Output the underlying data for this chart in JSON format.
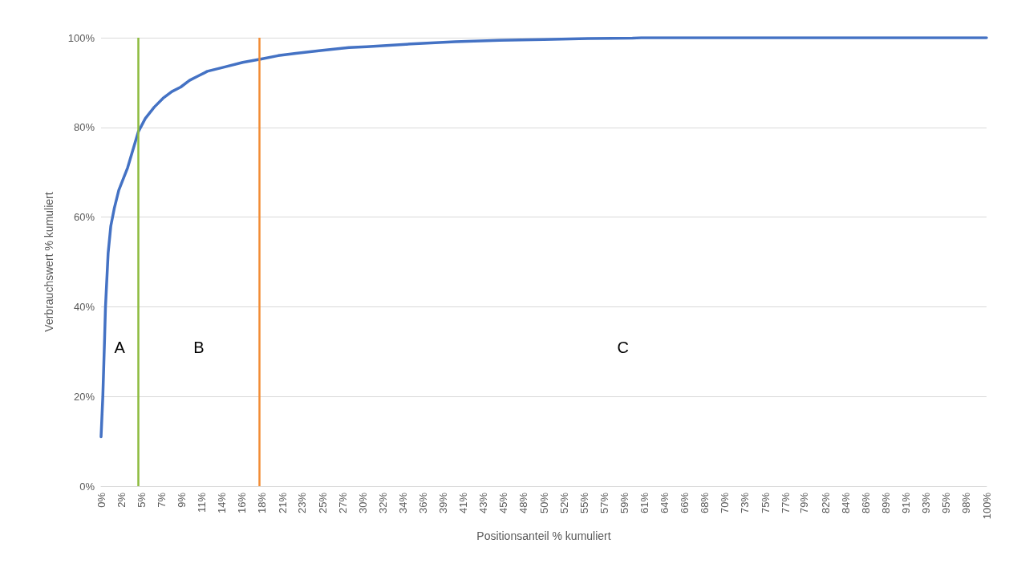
{
  "chart_data": {
    "type": "line",
    "xlabel": "Positionsanteil % kumuliert",
    "ylabel": "Verbrauchswert % kumuliert",
    "series": [
      {
        "color": "#4472c4",
        "x": [
          0,
          0.2,
          0.4,
          0.5,
          0.8,
          1.1,
          1.5,
          2,
          3,
          4.2,
          5,
          6,
          7,
          8,
          9,
          10,
          11,
          12,
          14,
          16,
          18,
          20,
          22,
          25,
          28,
          30,
          35,
          40,
          45,
          50,
          55,
          60,
          61,
          80,
          100
        ],
        "values": [
          11,
          20,
          33,
          40,
          52,
          58,
          62,
          66,
          71,
          79,
          82,
          84.5,
          86.5,
          88,
          89,
          90.5,
          91.5,
          92.5,
          93.5,
          94.5,
          95.2,
          96,
          96.5,
          97.2,
          97.8,
          98,
          98.6,
          99.1,
          99.4,
          99.6,
          99.8,
          99.9,
          100,
          100,
          100
        ]
      }
    ],
    "xlim": [
      0,
      100
    ],
    "ylim": [
      0,
      100
    ],
    "xticks": [
      {
        "value": 0,
        "label": "0%"
      },
      {
        "value": 2.27,
        "label": "2%"
      },
      {
        "value": 4.55,
        "label": "5%"
      },
      {
        "value": 6.82,
        "label": "7%"
      },
      {
        "value": 9.09,
        "label": "9%"
      },
      {
        "value": 11.36,
        "label": "11%"
      },
      {
        "value": 13.64,
        "label": "14%"
      },
      {
        "value": 15.91,
        "label": "16%"
      },
      {
        "value": 18.18,
        "label": "18%"
      },
      {
        "value": 20.5,
        "label": "21%"
      },
      {
        "value": 22.73,
        "label": "23%"
      },
      {
        "value": 25,
        "label": "25%"
      },
      {
        "value": 27.27,
        "label": "27%"
      },
      {
        "value": 29.55,
        "label": "30%"
      },
      {
        "value": 31.82,
        "label": "32%"
      },
      {
        "value": 34.09,
        "label": "34%"
      },
      {
        "value": 36.36,
        "label": "36%"
      },
      {
        "value": 38.64,
        "label": "39%"
      },
      {
        "value": 40.91,
        "label": "41%"
      },
      {
        "value": 43.18,
        "label": "43%"
      },
      {
        "value": 45.45,
        "label": "45%"
      },
      {
        "value": 47.73,
        "label": "48%"
      },
      {
        "value": 50,
        "label": "50%"
      },
      {
        "value": 52.27,
        "label": "52%"
      },
      {
        "value": 54.55,
        "label": "55%"
      },
      {
        "value": 56.82,
        "label": "57%"
      },
      {
        "value": 59.09,
        "label": "59%"
      },
      {
        "value": 61.36,
        "label": "61%"
      },
      {
        "value": 63.64,
        "label": "64%"
      },
      {
        "value": 65.91,
        "label": "66%"
      },
      {
        "value": 68.18,
        "label": "68%"
      },
      {
        "value": 70.45,
        "label": "70%"
      },
      {
        "value": 72.73,
        "label": "73%"
      },
      {
        "value": 75,
        "label": "75%"
      },
      {
        "value": 77.27,
        "label": "77%"
      },
      {
        "value": 79.4,
        "label": "79%"
      },
      {
        "value": 81.82,
        "label": "82%"
      },
      {
        "value": 84.09,
        "label": "84%"
      },
      {
        "value": 86.36,
        "label": "86%"
      },
      {
        "value": 88.64,
        "label": "89%"
      },
      {
        "value": 90.91,
        "label": "91%"
      },
      {
        "value": 93.18,
        "label": "93%"
      },
      {
        "value": 95.45,
        "label": "95%"
      },
      {
        "value": 97.73,
        "label": "98%"
      },
      {
        "value": 100,
        "label": "100%"
      }
    ],
    "yticks": [
      {
        "value": 0,
        "label": "0%"
      },
      {
        "value": 20,
        "label": "20%"
      },
      {
        "value": 40,
        "label": "40%"
      },
      {
        "value": 60,
        "label": "60%"
      },
      {
        "value": 80,
        "label": "80%"
      },
      {
        "value": 100,
        "label": "100%"
      }
    ],
    "ref_lines": [
      {
        "axis": "x",
        "value": 4.2,
        "label": null,
        "color": "#8dbb3e"
      },
      {
        "axis": "x",
        "value": 17.9,
        "label": null,
        "color": "#f28c35"
      }
    ],
    "annotations": [
      "A",
      "B",
      "C"
    ],
    "grid": "y",
    "marker": "none",
    "line_style": "solid"
  }
}
